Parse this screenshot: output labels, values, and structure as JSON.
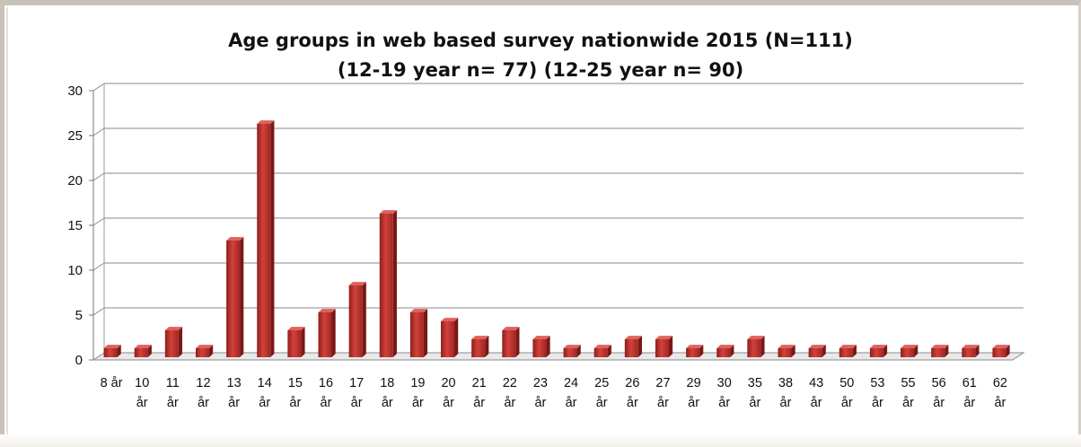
{
  "chart_data": {
    "type": "bar",
    "title": "Age groups in web based survey nationwide 2015 (N=111)",
    "subtitle": "(12-19 year n= 77) (12-25 year n= 90)",
    "xlabel": "",
    "ylabel": "",
    "ylim": [
      0,
      30
    ],
    "yticks": [
      "0",
      "5",
      "10",
      "15",
      "20",
      "25",
      "30"
    ],
    "grid": true,
    "legend": "none",
    "bar_color": "#c0302d",
    "categories": [
      [
        "8 år"
      ],
      [
        "10",
        "år"
      ],
      [
        "11",
        "år"
      ],
      [
        "12",
        "år"
      ],
      [
        "13",
        "år"
      ],
      [
        "14",
        "år"
      ],
      [
        "15",
        "år"
      ],
      [
        "16",
        "år"
      ],
      [
        "17",
        "år"
      ],
      [
        "18",
        "år"
      ],
      [
        "19",
        "år"
      ],
      [
        "20",
        "år"
      ],
      [
        "21",
        "år"
      ],
      [
        "22",
        "år"
      ],
      [
        "23",
        "år"
      ],
      [
        "24",
        "år"
      ],
      [
        "25",
        "år"
      ],
      [
        "26",
        "år"
      ],
      [
        "27",
        "år"
      ],
      [
        "29",
        "år"
      ],
      [
        "30",
        "år"
      ],
      [
        "35",
        "år"
      ],
      [
        "38",
        "år"
      ],
      [
        "43",
        "år"
      ],
      [
        "50",
        "år"
      ],
      [
        "53",
        "år"
      ],
      [
        "55",
        "år"
      ],
      [
        "56",
        "år"
      ],
      [
        "61",
        "år"
      ],
      [
        "62",
        "år"
      ]
    ],
    "values": [
      1,
      1,
      3,
      1,
      13,
      26,
      3,
      5,
      8,
      16,
      5,
      4,
      2,
      3,
      2,
      1,
      1,
      2,
      2,
      1,
      1,
      2,
      1,
      1,
      1,
      1,
      1,
      1,
      1,
      1
    ]
  }
}
